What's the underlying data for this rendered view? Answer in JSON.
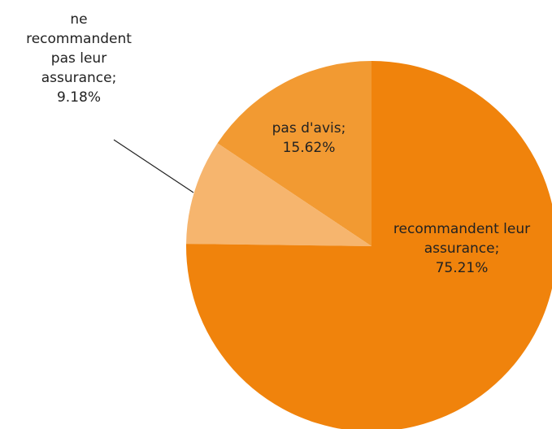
{
  "chart_data": {
    "type": "pie",
    "categories": [
      "recommandent leur assurance;",
      "ne recommandent pas leur assurance;",
      "pas d'avis;"
    ],
    "values": [
      75.21,
      9.18,
      15.62
    ],
    "value_labels": [
      "75.21%",
      "9.18%",
      "15.62%"
    ],
    "colors": [
      "#f0830c",
      "#f6b56e",
      "#f29a32"
    ]
  }
}
